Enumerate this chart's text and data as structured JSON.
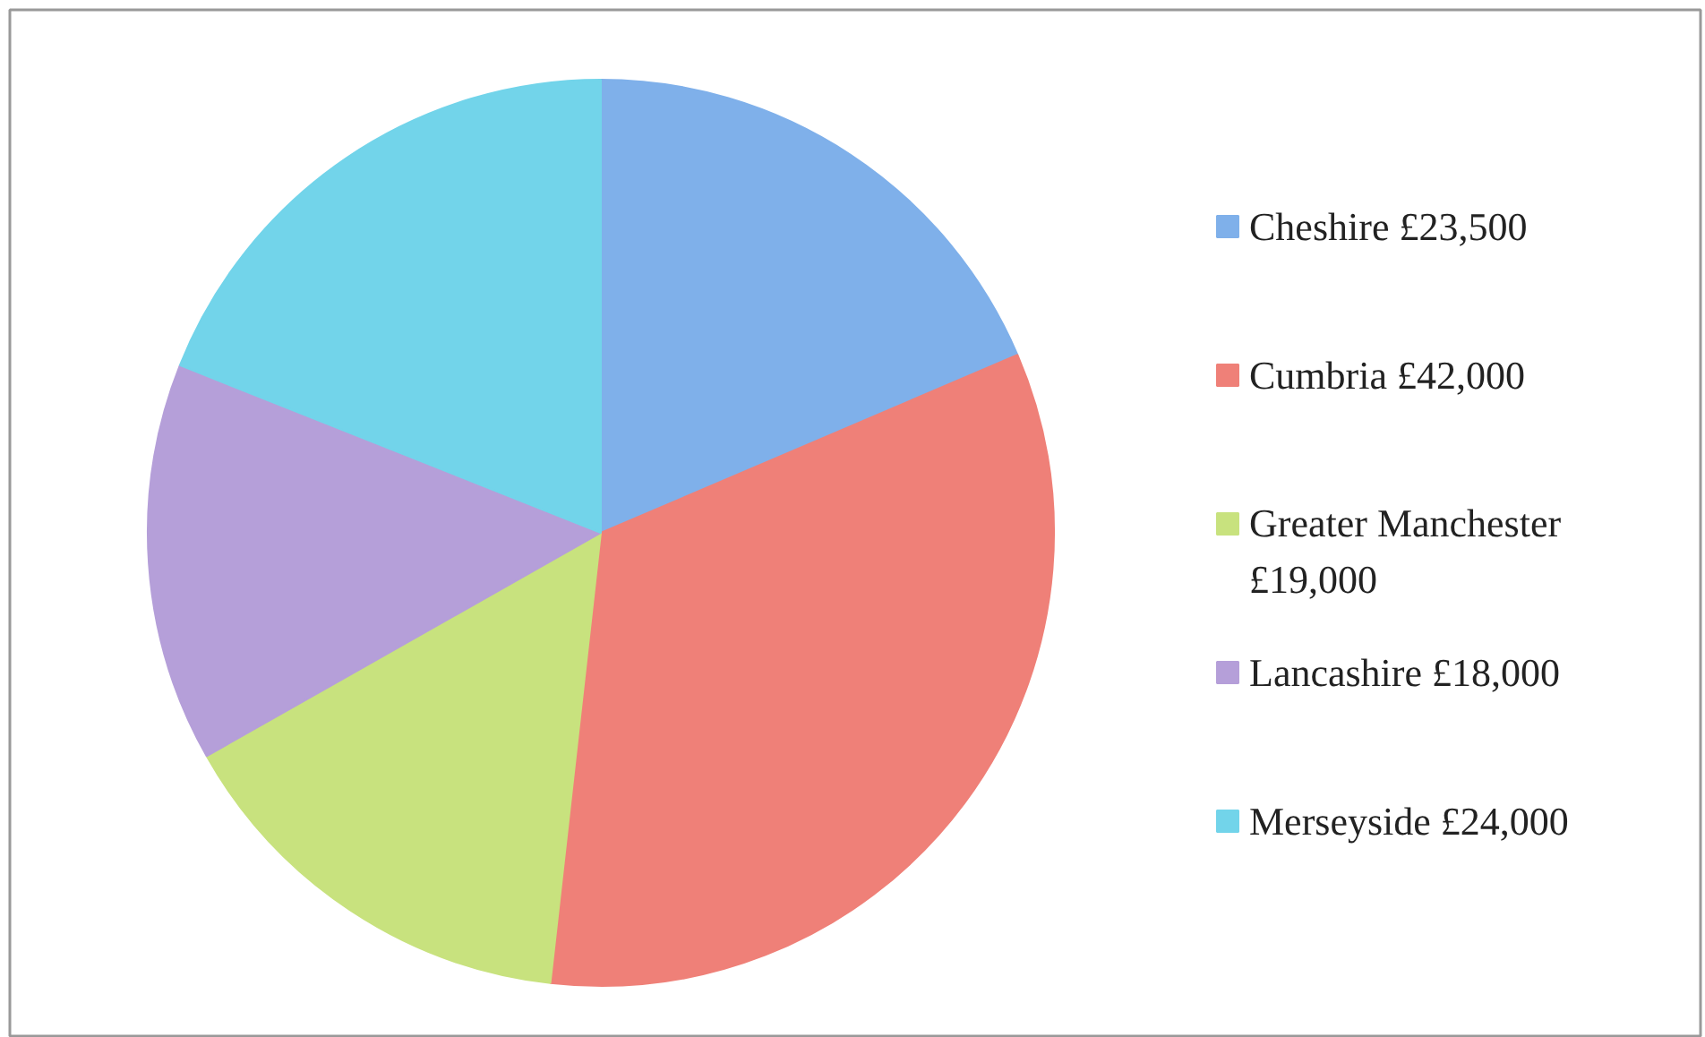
{
  "chart_data": {
    "type": "pie",
    "categories": [
      "Cheshire £23,500",
      "Cumbria £42,000",
      "Greater Manchester £19,000",
      "Lancashire £18,000",
      "Merseyside £24,000"
    ],
    "values": [
      23500,
      42000,
      19000,
      18000,
      24000
    ],
    "colors": [
      "#7fb0ea",
      "#ef8078",
      "#c8e27e",
      "#b59fd9",
      "#72d4ea"
    ],
    "legend": "right"
  }
}
